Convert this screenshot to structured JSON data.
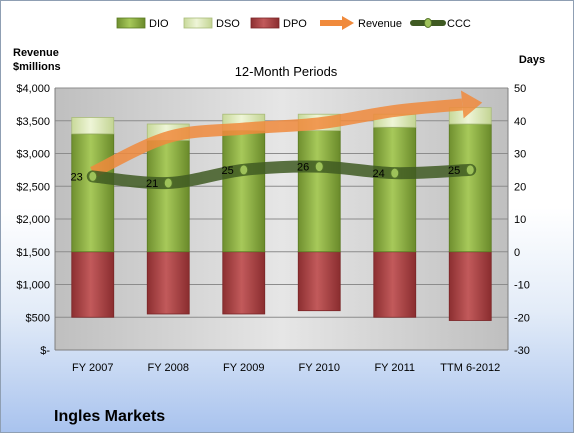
{
  "chart_data": {
    "type": "bar",
    "title": "12-Month Periods",
    "company": "Ingles Markets",
    "y_left_label_line1": "Revenue",
    "y_left_label_line2": "$millions",
    "y_right_label": "Days",
    "categories": [
      "FY 2007",
      "FY 2008",
      "FY 2009",
      "FY 2010",
      "FY 2011",
      "TTM 6-2012"
    ],
    "y_left_ticks": [
      "$-",
      "$500",
      "$1,000",
      "$1,500",
      "$2,000",
      "$2,500",
      "$3,000",
      "$3,500",
      "$4,000"
    ],
    "y_left_range": [
      0,
      4000
    ],
    "y_right_ticks": [
      "-30",
      "-20",
      "-10",
      "0",
      "10",
      "20",
      "30",
      "40",
      "50"
    ],
    "y_right_range": [
      -30,
      50
    ],
    "legend_position": "top",
    "series": [
      {
        "name": "DIO",
        "axis": "right",
        "kind": "stacked-bar",
        "color": "#84a83f",
        "values": [
          36,
          34,
          37,
          37,
          38,
          39
        ]
      },
      {
        "name": "DSO",
        "axis": "right",
        "kind": "stacked-bar",
        "color": "#dce9b7",
        "values": [
          5,
          5,
          5,
          5,
          4,
          5
        ]
      },
      {
        "name": "DPO",
        "axis": "right",
        "kind": "negative-bar",
        "color": "#a23b3d",
        "values": [
          -20,
          -19,
          -19,
          -18,
          -20,
          -21
        ]
      },
      {
        "name": "Revenue",
        "axis": "left",
        "kind": "line",
        "color": "#f08a3c",
        "values": [
          2710,
          3250,
          3380,
          3460,
          3650,
          3760
        ]
      },
      {
        "name": "CCC",
        "axis": "right",
        "kind": "line",
        "color": "#3f5a22",
        "values": [
          23,
          21,
          25,
          26,
          24,
          25
        ],
        "labels": [
          "23",
          "21",
          "25",
          "26",
          "24",
          "25"
        ]
      }
    ]
  }
}
